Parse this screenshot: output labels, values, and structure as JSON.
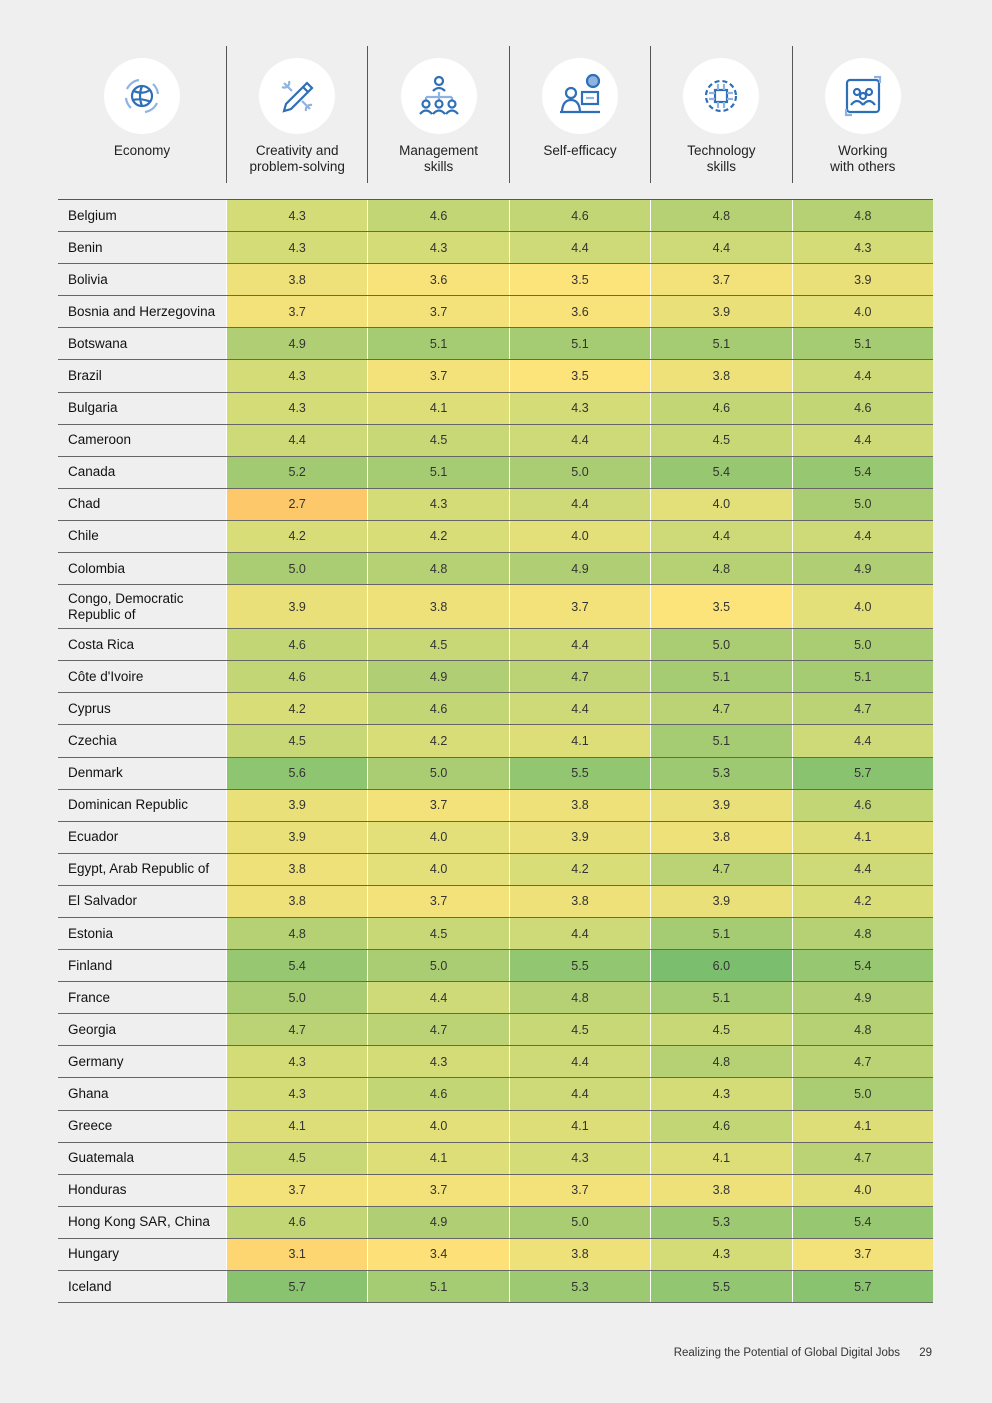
{
  "header": {
    "economy_label": "Economy",
    "columns": [
      {
        "label_line1": "Creativity and",
        "label_line2": "problem-solving",
        "icon": "pencil-wrench-icon"
      },
      {
        "label_line1": "Management",
        "label_line2": "skills",
        "icon": "team-hierarchy-icon"
      },
      {
        "label_line1": "Self-efficacy",
        "label_line2": "",
        "icon": "person-at-computer-icon"
      },
      {
        "label_line1": "Technology",
        "label_line2": "skills",
        "icon": "cpu-gear-icon"
      },
      {
        "label_line1": "Working",
        "label_line2": "with others",
        "icon": "group-people-icon"
      }
    ],
    "economy_icon": "globe-arrows-icon"
  },
  "colors": {
    "accent_blue": "#2f6fb8",
    "scale_low": "#fdc86a",
    "scale_mid": "#fde47a",
    "scale_high": "#7bbf6e"
  },
  "rows": [
    {
      "country": "Belgium",
      "values": [
        "4.3",
        "4.6",
        "4.6",
        "4.8",
        "4.8"
      ]
    },
    {
      "country": "Benin",
      "values": [
        "4.3",
        "4.3",
        "4.4",
        "4.4",
        "4.3"
      ]
    },
    {
      "country": "Bolivia",
      "values": [
        "3.8",
        "3.6",
        "3.5",
        "3.7",
        "3.9"
      ]
    },
    {
      "country": "Bosnia and Herzegovina",
      "values": [
        "3.7",
        "3.7",
        "3.6",
        "3.9",
        "4.0"
      ]
    },
    {
      "country": "Botswana",
      "values": [
        "4.9",
        "5.1",
        "5.1",
        "5.1",
        "5.1"
      ]
    },
    {
      "country": "Brazil",
      "values": [
        "4.3",
        "3.7",
        "3.5",
        "3.8",
        "4.4"
      ]
    },
    {
      "country": "Bulgaria",
      "values": [
        "4.3",
        "4.1",
        "4.3",
        "4.6",
        "4.6"
      ]
    },
    {
      "country": "Cameroon",
      "values": [
        "4.4",
        "4.5",
        "4.4",
        "4.5",
        "4.4"
      ]
    },
    {
      "country": "Canada",
      "values": [
        "5.2",
        "5.1",
        "5.0",
        "5.4",
        "5.4"
      ]
    },
    {
      "country": "Chad",
      "values": [
        "2.7",
        "4.3",
        "4.4",
        "4.0",
        "5.0"
      ]
    },
    {
      "country": "Chile",
      "values": [
        "4.2",
        "4.2",
        "4.0",
        "4.4",
        "4.4"
      ]
    },
    {
      "country": "Colombia",
      "values": [
        "5.0",
        "4.8",
        "4.9",
        "4.8",
        "4.9"
      ]
    },
    {
      "country": "Congo, Democratic Republic of",
      "values": [
        "3.9",
        "3.8",
        "3.7",
        "3.5",
        "4.0"
      ],
      "tall": true
    },
    {
      "country": "Costa Rica",
      "values": [
        "4.6",
        "4.5",
        "4.4",
        "5.0",
        "5.0"
      ]
    },
    {
      "country": "Côte d'Ivoire",
      "values": [
        "4.6",
        "4.9",
        "4.7",
        "5.1",
        "5.1"
      ]
    },
    {
      "country": "Cyprus",
      "values": [
        "4.2",
        "4.6",
        "4.4",
        "4.7",
        "4.7"
      ]
    },
    {
      "country": "Czechia",
      "values": [
        "4.5",
        "4.2",
        "4.1",
        "5.1",
        "4.4"
      ]
    },
    {
      "country": "Denmark",
      "values": [
        "5.6",
        "5.0",
        "5.5",
        "5.3",
        "5.7"
      ]
    },
    {
      "country": "Dominican Republic",
      "values": [
        "3.9",
        "3.7",
        "3.8",
        "3.9",
        "4.6"
      ]
    },
    {
      "country": "Ecuador",
      "values": [
        "3.9",
        "4.0",
        "3.9",
        "3.8",
        "4.1"
      ]
    },
    {
      "country": "Egypt, Arab Republic of",
      "values": [
        "3.8",
        "4.0",
        "4.2",
        "4.7",
        "4.4"
      ]
    },
    {
      "country": "El Salvador",
      "values": [
        "3.8",
        "3.7",
        "3.8",
        "3.9",
        "4.2"
      ]
    },
    {
      "country": "Estonia",
      "values": [
        "4.8",
        "4.5",
        "4.4",
        "5.1",
        "4.8"
      ]
    },
    {
      "country": "Finland",
      "values": [
        "5.4",
        "5.0",
        "5.5",
        "6.0",
        "5.4"
      ]
    },
    {
      "country": "France",
      "values": [
        "5.0",
        "4.4",
        "4.8",
        "5.1",
        "4.9"
      ]
    },
    {
      "country": "Georgia",
      "values": [
        "4.7",
        "4.7",
        "4.5",
        "4.5",
        "4.8"
      ]
    },
    {
      "country": "Germany",
      "values": [
        "4.3",
        "4.3",
        "4.4",
        "4.8",
        "4.7"
      ]
    },
    {
      "country": "Ghana",
      "values": [
        "4.3",
        "4.6",
        "4.4",
        "4.3",
        "5.0"
      ]
    },
    {
      "country": "Greece",
      "values": [
        "4.1",
        "4.0",
        "4.1",
        "4.6",
        "4.1"
      ]
    },
    {
      "country": "Guatemala",
      "values": [
        "4.5",
        "4.1",
        "4.3",
        "4.1",
        "4.7"
      ]
    },
    {
      "country": "Honduras",
      "values": [
        "3.7",
        "3.7",
        "3.7",
        "3.8",
        "4.0"
      ]
    },
    {
      "country": "Hong Kong SAR, China",
      "values": [
        "4.6",
        "4.9",
        "5.0",
        "5.3",
        "5.4"
      ]
    },
    {
      "country": "Hungary",
      "values": [
        "3.1",
        "3.4",
        "3.8",
        "4.3",
        "3.7"
      ]
    },
    {
      "country": "Iceland",
      "values": [
        "5.7",
        "5.1",
        "5.3",
        "5.5",
        "5.7"
      ]
    }
  ],
  "footer": {
    "title": "Realizing the Potential of Global Digital Jobs",
    "page_number": "29"
  }
}
